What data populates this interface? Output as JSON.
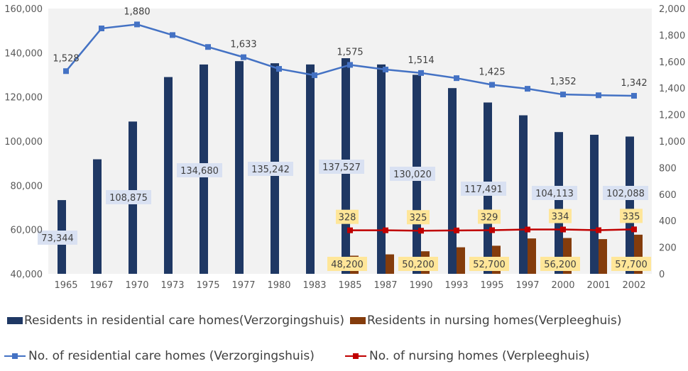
{
  "chart_data": {
    "type": "bar",
    "categories": [
      "1965",
      "1967",
      "1970",
      "1973",
      "1975",
      "1977",
      "1980",
      "1983",
      "1985",
      "1987",
      "1990",
      "1993",
      "1995",
      "1997",
      "2000",
      "2001",
      "2002"
    ],
    "series": [
      {
        "name": "Residents in residential care homes(Verzorgingshuis)",
        "kind": "bar",
        "axis": "left",
        "color": "#1f3864",
        "values": [
          73344,
          91800,
          108875,
          129000,
          134680,
          136200,
          135242,
          134700,
          137527,
          134700,
          130020,
          124000,
          117491,
          111700,
          104113,
          102900,
          102088
        ],
        "labeled": [
          0,
          2,
          4,
          6,
          8,
          10,
          12,
          14,
          16
        ]
      },
      {
        "name": "Residents in nursing homes(Verpleeghuis)",
        "kind": "bar",
        "axis": "left",
        "color": "#843c0c",
        "values": [
          null,
          null,
          null,
          null,
          null,
          null,
          null,
          null,
          48200,
          48800,
          50200,
          52000,
          52700,
          56000,
          56200,
          55700,
          57700
        ],
        "labeled": [
          8,
          10,
          12,
          14,
          16
        ]
      },
      {
        "name": "No. of residential care homes (Verzorgingshuis)",
        "kind": "line",
        "axis": "right",
        "color": "#4472c4",
        "values": [
          1528,
          1850,
          1880,
          1800,
          1710,
          1633,
          1545,
          1497,
          1575,
          1540,
          1514,
          1475,
          1425,
          1395,
          1352,
          1346,
          1342
        ],
        "labeled": [
          0,
          2,
          5,
          8,
          10,
          12,
          14,
          16
        ]
      },
      {
        "name": "No. of nursing homes (Verpleeghuis)",
        "kind": "line",
        "axis": "right",
        "color": "#c00000",
        "values": [
          null,
          null,
          null,
          null,
          null,
          null,
          null,
          null,
          328,
          328,
          325,
          327,
          329,
          334,
          334,
          329,
          335
        ],
        "labeled": [
          8,
          10,
          12,
          14,
          16
        ]
      }
    ],
    "y_left": {
      "min": 40000,
      "max": 160000,
      "step": 20000,
      "ticks": [
        "40,000",
        "60,000",
        "80,000",
        "100,000",
        "120,000",
        "140,000",
        "160,000"
      ]
    },
    "y_right": {
      "min": 0,
      "max": 2000,
      "step": 200,
      "ticks": [
        "0",
        "200",
        "400",
        "600",
        "800",
        "1,000",
        "1,200",
        "1,400",
        "1,600",
        "1,800",
        "2,000"
      ]
    },
    "labels": {
      "s0": [
        "73,344",
        "108,875",
        "134,680",
        "135,242",
        "137,527",
        "130,020",
        "117,491",
        "104,113",
        "102,088"
      ],
      "s1": [
        "48,200",
        "50,200",
        "52,700",
        "56,200",
        "57,700"
      ],
      "s2": [
        "1,528",
        "1,880",
        "1,633",
        "1,575",
        "1,514",
        "1,425",
        "1,352",
        "1,342"
      ],
      "s3": [
        "328",
        "325",
        "329",
        "334",
        "335"
      ]
    },
    "legend_placement": "bottom",
    "grid": false,
    "title": "",
    "xlabel": "",
    "ylabel": ""
  }
}
